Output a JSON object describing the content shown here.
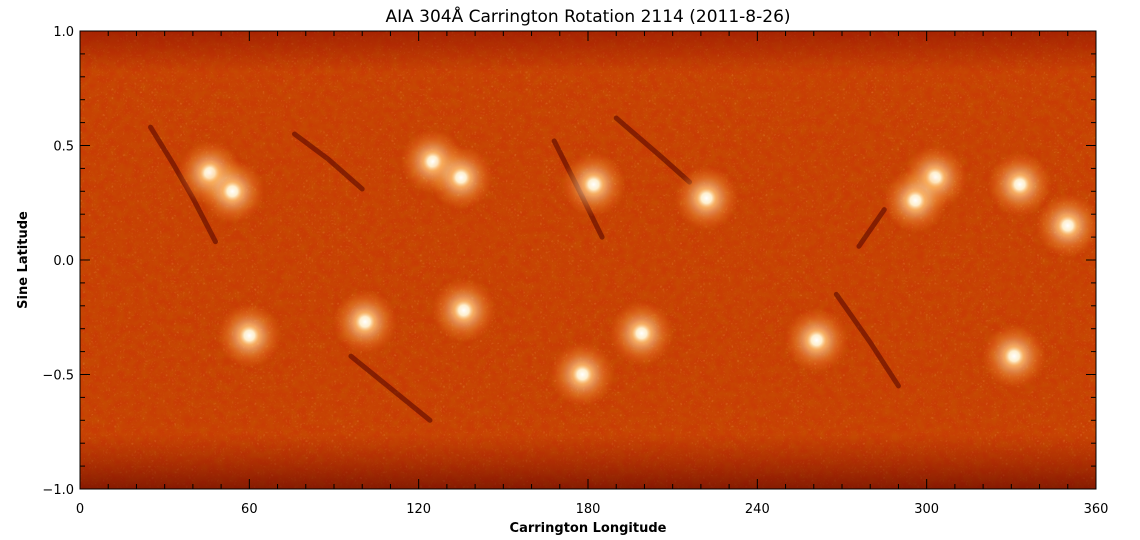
{
  "chart_data": {
    "type": "heatmap",
    "title": "AIA 304Å Carrington Rotation 2114 (2011-8-26)",
    "xlabel": "Carrington Longitude",
    "ylabel": "Sine Latitude",
    "xlim": [
      0,
      360
    ],
    "ylim": [
      -1.0,
      1.0
    ],
    "x_ticks": [
      0,
      60,
      120,
      180,
      240,
      300,
      360
    ],
    "x_tick_labels": [
      "0",
      "60",
      "120",
      "180",
      "240",
      "300",
      "360"
    ],
    "y_ticks": [
      -1.0,
      -0.5,
      0.0,
      0.5,
      1.0
    ],
    "y_tick_labels": [
      "−1.0",
      "−0.5",
      "0.0",
      "0.5",
      "1.0"
    ],
    "colormap": [
      "#6a0000",
      "#a01800",
      "#c83a00",
      "#e86a10",
      "#ffb060",
      "#ffffff"
    ],
    "bright_regions": [
      {
        "lon": 46,
        "sinlat": 0.38
      },
      {
        "lon": 54,
        "sinlat": 0.3
      },
      {
        "lon": 125,
        "sinlat": 0.43
      },
      {
        "lon": 135,
        "sinlat": 0.36
      },
      {
        "lon": 222,
        "sinlat": 0.27
      },
      {
        "lon": 303,
        "sinlat": 0.36
      },
      {
        "lon": 296,
        "sinlat": 0.26
      },
      {
        "lon": 333,
        "sinlat": 0.33
      },
      {
        "lon": 350,
        "sinlat": 0.15
      },
      {
        "lon": 60,
        "sinlat": -0.33
      },
      {
        "lon": 101,
        "sinlat": -0.27
      },
      {
        "lon": 136,
        "sinlat": -0.22
      },
      {
        "lon": 178,
        "sinlat": -0.5
      },
      {
        "lon": 199,
        "sinlat": -0.32
      },
      {
        "lon": 261,
        "sinlat": -0.35
      },
      {
        "lon": 331,
        "sinlat": -0.42
      },
      {
        "lon": 182,
        "sinlat": 0.33
      }
    ],
    "dark_filaments": [
      {
        "points": [
          [
            25,
            0.58
          ],
          [
            33,
            0.42
          ],
          [
            40,
            0.27
          ],
          [
            48,
            0.08
          ]
        ]
      },
      {
        "points": [
          [
            76,
            0.55
          ],
          [
            88,
            0.44
          ],
          [
            100,
            0.31
          ]
        ]
      },
      {
        "points": [
          [
            168,
            0.52
          ],
          [
            177,
            0.3
          ],
          [
            185,
            0.1
          ]
        ]
      },
      {
        "points": [
          [
            190,
            0.62
          ],
          [
            206,
            0.45
          ],
          [
            216,
            0.34
          ]
        ]
      },
      {
        "points": [
          [
            96,
            -0.42
          ],
          [
            112,
            -0.58
          ],
          [
            124,
            -0.7
          ]
        ]
      },
      {
        "points": [
          [
            268,
            -0.15
          ],
          [
            280,
            -0.36
          ],
          [
            290,
            -0.55
          ]
        ]
      },
      {
        "points": [
          [
            285,
            0.22
          ],
          [
            276,
            0.06
          ]
        ]
      }
    ]
  }
}
